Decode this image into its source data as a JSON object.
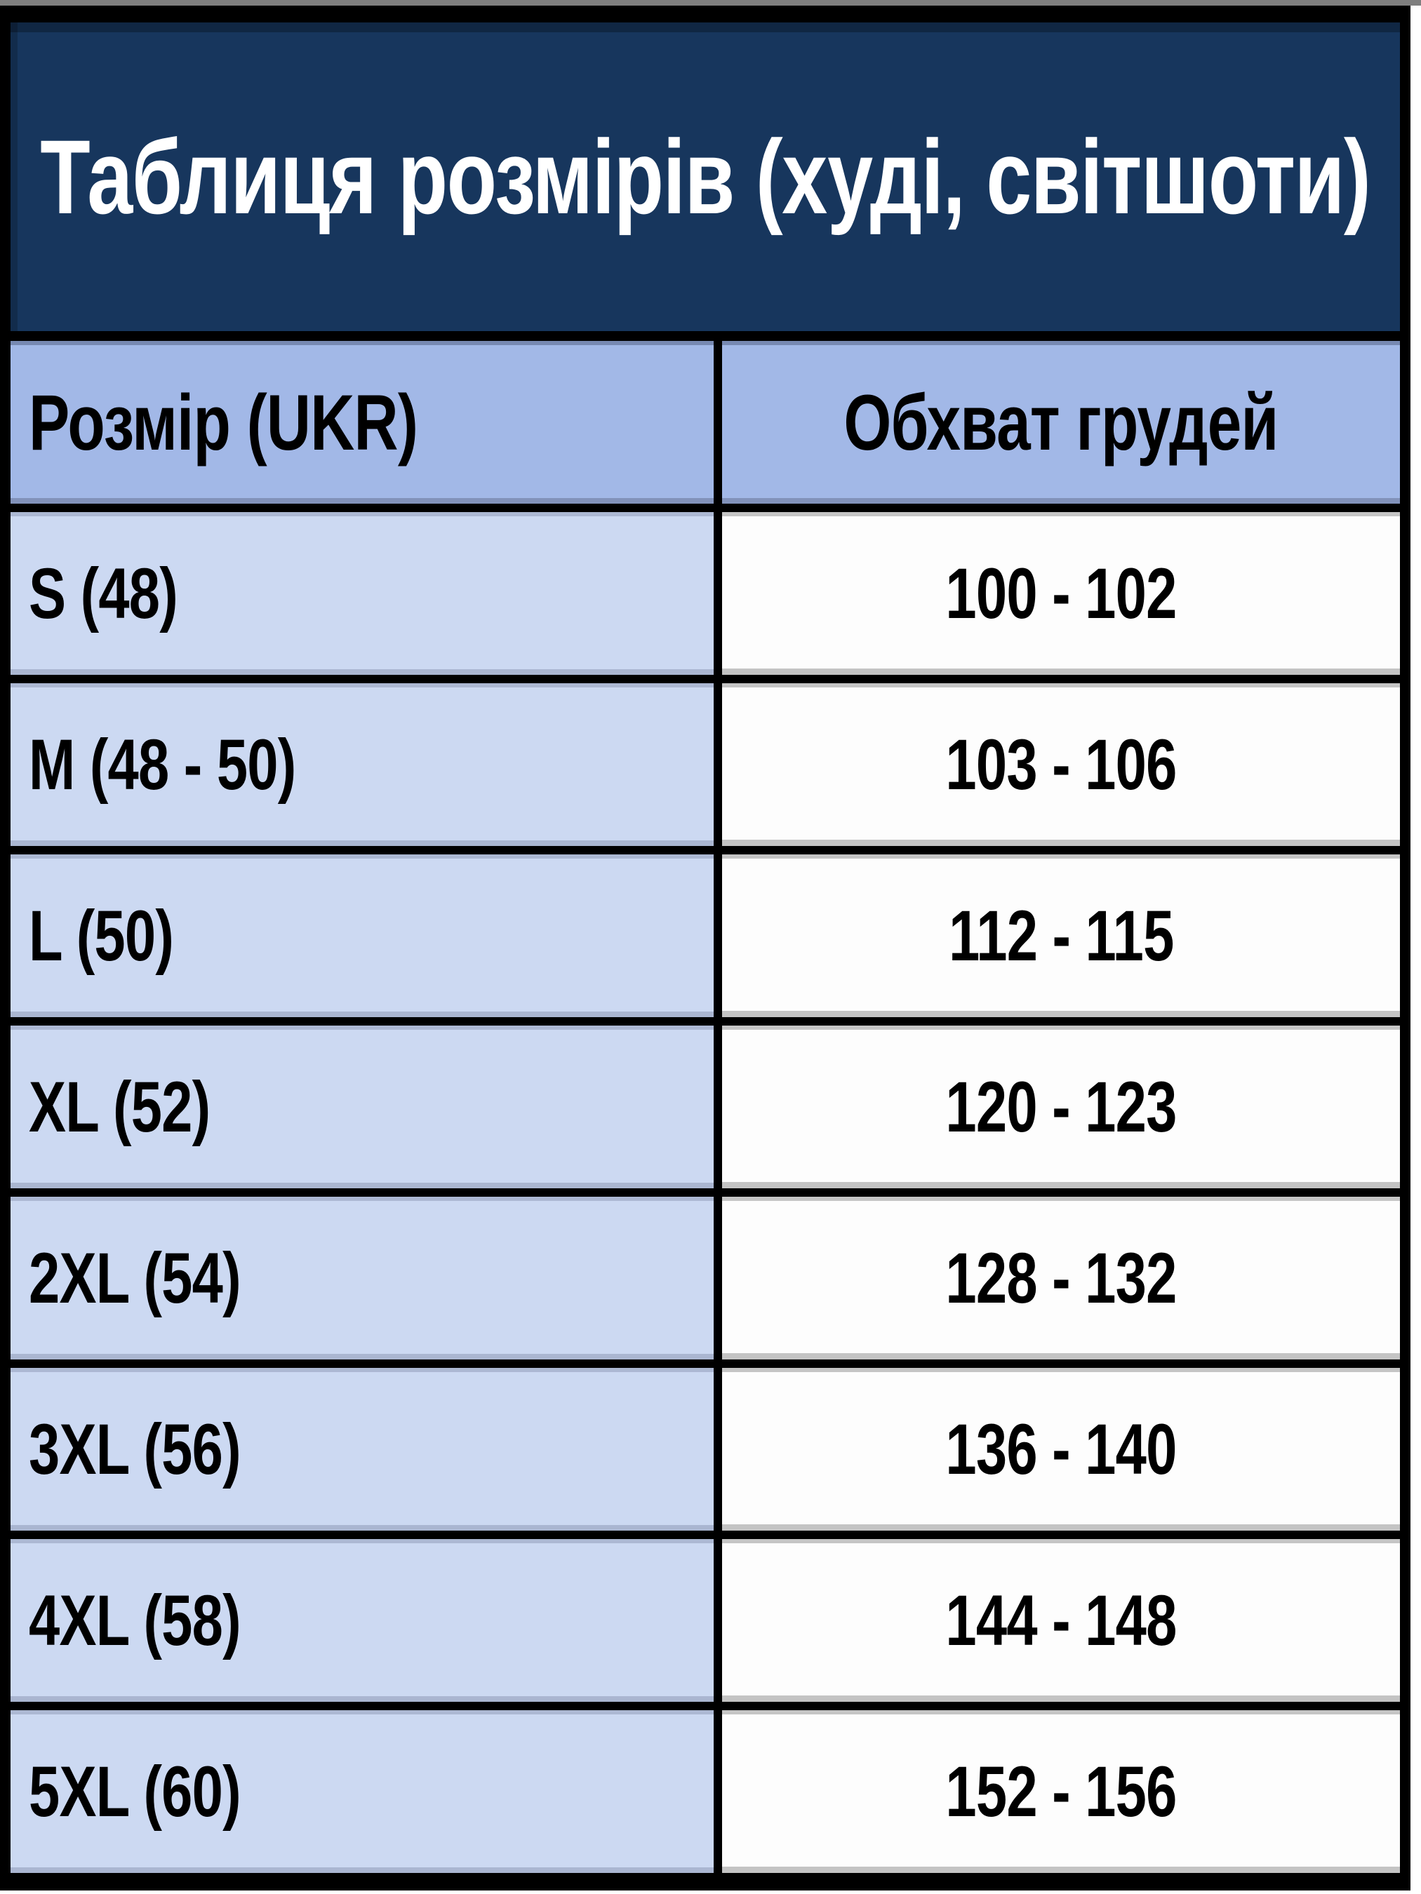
{
  "title": "Таблиця розмірів (худі, світшоти)",
  "table": {
    "columns": [
      "Розмір (UKR)",
      "Обхват грудей"
    ],
    "rows": [
      {
        "size": "S (48)",
        "chest": "100 - 102"
      },
      {
        "size": "M (48 - 50)",
        "chest": "103 - 106"
      },
      {
        "size": "L (50)",
        "chest": "112 - 115"
      },
      {
        "size": "XL (52)",
        "chest": "120 - 123"
      },
      {
        "size": "2XL (54)",
        "chest": "128 - 132"
      },
      {
        "size": "3XL (56)",
        "chest": "136 - 140"
      },
      {
        "size": "4XL (58)",
        "chest": "144 - 148"
      },
      {
        "size": "5XL (60)",
        "chest": "152 - 156"
      }
    ]
  },
  "chart_data": {
    "type": "table",
    "title": "Таблиця розмірів (худі, світшоти)",
    "columns": [
      "Розмір (UKR)",
      "Обхват грудей"
    ],
    "rows": [
      [
        "S (48)",
        "100 - 102"
      ],
      [
        "M (48 - 50)",
        "103 - 106"
      ],
      [
        "L (50)",
        "112 - 115"
      ],
      [
        "XL (52)",
        "120 - 123"
      ],
      [
        "2XL (54)",
        "128 - 132"
      ],
      [
        "3XL (56)",
        "136 - 140"
      ],
      [
        "4XL (58)",
        "144 - 148"
      ],
      [
        "5XL (60)",
        "152 - 156"
      ]
    ]
  },
  "colors": {
    "title_band_bg": "#17365d",
    "header_row_bg": "#a2b8e7",
    "size_column_bg": "#ccd9f2",
    "chest_column_bg": "#fdfdfd",
    "border": "#000000",
    "title_text": "#ffffff",
    "cell_text": "#000000"
  }
}
